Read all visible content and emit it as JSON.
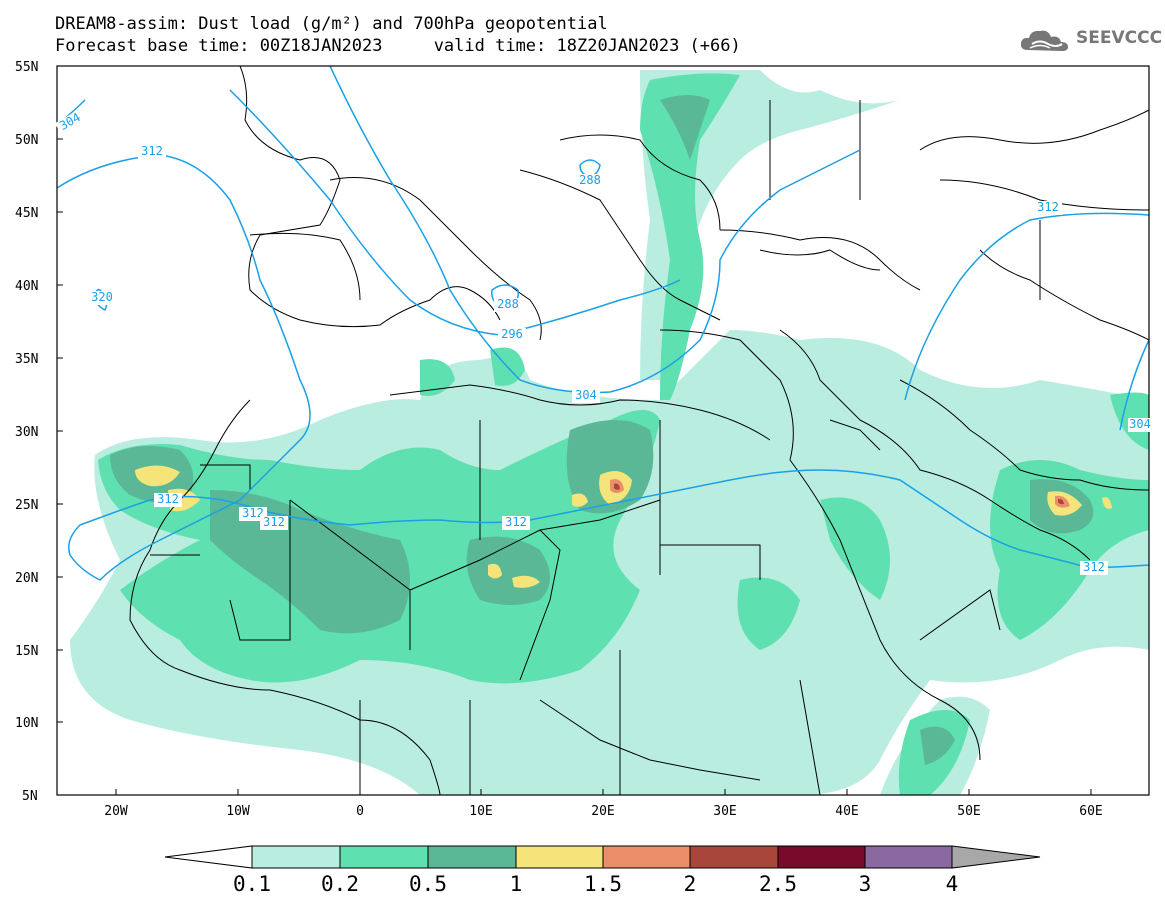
{
  "header": {
    "title_line1": "DREAM8-assim: Dust load (g/m²) and 700hPa geopotential",
    "title_line2": "Forecast base time: 00Z18JAN2023     valid time: 18Z20JAN2023 (+66)",
    "logo_text": "SEEVCCC"
  },
  "axes": {
    "lat_labels": [
      "55N",
      "50N",
      "45N",
      "40N",
      "35N",
      "30N",
      "25N",
      "20N",
      "15N",
      "10N",
      "5N"
    ],
    "lon_labels": [
      "20W",
      "10W",
      "0",
      "10E",
      "20E",
      "30E",
      "40E",
      "50E",
      "60E"
    ]
  },
  "contours": {
    "color": "#1aa0e8",
    "labels": [
      "304",
      "312",
      "288",
      "312",
      "320",
      "288",
      "296",
      "304",
      "312",
      "312",
      "312",
      "312",
      "312",
      "304"
    ]
  },
  "colorbar": {
    "levels": [
      "0.1",
      "0.2",
      "0.5",
      "1",
      "1.5",
      "2",
      "2.5",
      "3",
      "4"
    ],
    "colors": [
      "#b8ede0",
      "#5fe0b0",
      "#5ab896",
      "#f4e47a",
      "#ec8e6a",
      "#a8463c",
      "#7a0a2c",
      "#8a68a0",
      "#a8a8a8"
    ]
  },
  "dust_colors": {
    "level1": "#b8ede0",
    "level2": "#5fe0b0",
    "level3": "#5ab896",
    "level4": "#f4e47a",
    "level5": "#ec8e6a",
    "level6": "#a8463c"
  }
}
